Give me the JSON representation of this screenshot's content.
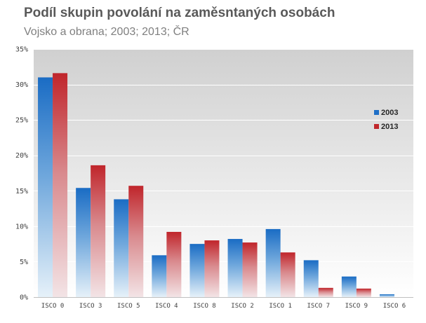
{
  "chart_data": {
    "type": "bar",
    "title": "Podíl skupin povolání na zaměsntaných osobách",
    "subtitle": "Vojsko a obrana;  2003; 2013; ČR",
    "xlabel": "",
    "ylabel": "",
    "categories": [
      "ISCO 0",
      "ISCO 3",
      "ISCO 5",
      "ISCO 4",
      "ISCO 8",
      "ISCO 2",
      "ISCO 1",
      "ISCO 7",
      "ISCO 9",
      "ISCO 6"
    ],
    "series": [
      {
        "name": "2003",
        "values": [
          31.0,
          15.4,
          13.8,
          5.9,
          7.5,
          8.2,
          9.6,
          5.2,
          2.9,
          0.4
        ],
        "color": "#1f6fc6"
      },
      {
        "name": "2013",
        "values": [
          31.6,
          18.6,
          15.7,
          9.2,
          8.0,
          7.7,
          6.3,
          1.3,
          1.2,
          0.0
        ],
        "color": "#c0282c"
      }
    ],
    "ylim": [
      0,
      35
    ],
    "yticks": [
      "0%",
      "5%",
      "10%",
      "15%",
      "20%",
      "25%",
      "30%",
      "35%"
    ],
    "ytick_values": [
      0,
      5,
      10,
      15,
      20,
      25,
      30,
      35
    ],
    "grid": true,
    "legend": "right"
  }
}
